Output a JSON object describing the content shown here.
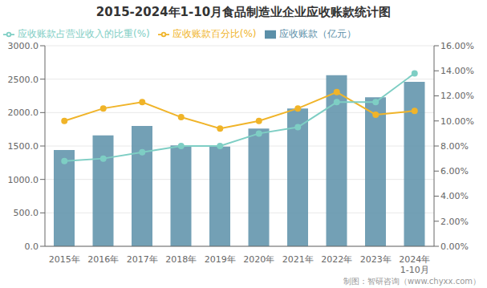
{
  "chart_data": {
    "type": "bar",
    "title": "2015-2024年1-10月食品制造业企业应收账款统计图",
    "categories": [
      "2015年",
      "2016年",
      "2017年",
      "2018年",
      "2019年",
      "2020年",
      "2021年",
      "2022年",
      "2023年",
      "2024年\n1-10月"
    ],
    "series": [
      {
        "name": "应收账款（亿元）",
        "type": "bar",
        "color": "#5b8fa8",
        "values": [
          1440.0,
          1660.0,
          1800.0,
          1510.0,
          1490.0,
          1760.0,
          2060.0,
          2560.0,
          2230.0,
          2460.0
        ]
      },
      {
        "name": "应收账款百分比(%)",
        "type": "line",
        "color": "#f0b429",
        "marker": "circle",
        "axis": "y2",
        "values": [
          10.0,
          11.0,
          11.5,
          10.3,
          9.4,
          10.0,
          11.0,
          12.3,
          10.5,
          10.8
        ]
      },
      {
        "name": "应收账款占营业收入的比重(%)",
        "type": "line",
        "color": "#7ecec4",
        "marker": "circle",
        "axis": "y2",
        "values": [
          6.8,
          7.0,
          7.5,
          8.0,
          8.0,
          9.0,
          9.5,
          11.5,
          11.5,
          13.8
        ]
      }
    ],
    "ylim": [
      0,
      3000
    ],
    "yticks": [
      {
        "value": 0,
        "label": "0.0"
      },
      {
        "value": 500,
        "label": "500.0"
      },
      {
        "value": 1000,
        "label": "1000.0"
      },
      {
        "value": 1500,
        "label": "1500.0"
      },
      {
        "value": 2000,
        "label": "2000.0"
      },
      {
        "value": 2500,
        "label": "2500.0"
      },
      {
        "value": 3000,
        "label": "3000.0"
      }
    ],
    "y2lim": [
      0,
      16
    ],
    "y2ticks": [
      {
        "value": 0,
        "label": "0.00%"
      },
      {
        "value": 2,
        "label": "2.00%"
      },
      {
        "value": 4,
        "label": "4.00%"
      },
      {
        "value": 6,
        "label": "6.00%"
      },
      {
        "value": 8,
        "label": "8.00%"
      },
      {
        "value": 10,
        "label": "10.00%"
      },
      {
        "value": 12,
        "label": "12.00%"
      },
      {
        "value": 14,
        "label": "14.00%"
      },
      {
        "value": 16,
        "label": "16.00%"
      }
    ],
    "grid": true,
    "legend": "upper left",
    "annotations": [
      "制图：智研咨询（www.chyxx.com）"
    ]
  }
}
